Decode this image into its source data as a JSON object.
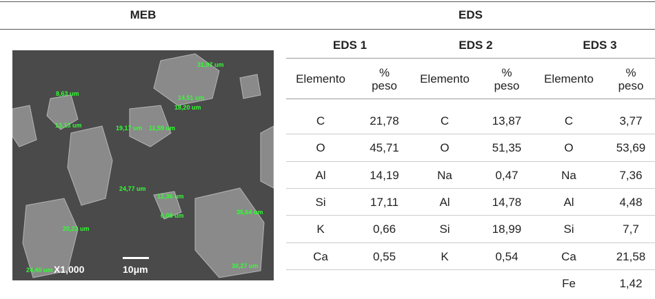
{
  "header": {
    "meb": "MEB",
    "eds": "EDS"
  },
  "column_headers": {
    "element": "Elemento",
    "weight": "% peso"
  },
  "image": {
    "magnification": "X1,000",
    "scale": "10μm",
    "measurements": [
      "31,97 um",
      "8,63 um",
      "14,51 um",
      "18,20 um",
      "13,13 um",
      "19,17 um",
      "11,59 um",
      "24,77 um",
      "12,36 um",
      "20,22 um",
      "6,08 um",
      "35,64 um",
      "24,40 um",
      "30,27 um"
    ]
  },
  "groups": [
    {
      "title": "EDS 1",
      "rows": [
        [
          "C",
          "21,78"
        ],
        [
          "O",
          "45,71"
        ],
        [
          "Al",
          "14,19"
        ],
        [
          "Si",
          "17,11"
        ],
        [
          "K",
          "0,66"
        ],
        [
          "Ca",
          "0,55"
        ]
      ]
    },
    {
      "title": "EDS 2",
      "rows": [
        [
          "C",
          "13,87"
        ],
        [
          "O",
          "51,35"
        ],
        [
          "Na",
          "0,47"
        ],
        [
          "Al",
          "14,78"
        ],
        [
          "Si",
          "18,99"
        ],
        [
          "K",
          "0,54"
        ]
      ]
    },
    {
      "title": "EDS 3",
      "rows": [
        [
          "C",
          "3,77"
        ],
        [
          "O",
          "53,69"
        ],
        [
          "Na",
          "7,36"
        ],
        [
          "Al",
          "4,48"
        ],
        [
          "Si",
          "7,7"
        ],
        [
          "Ca",
          "21,58"
        ],
        [
          "Fe",
          "1,42"
        ]
      ]
    }
  ]
}
